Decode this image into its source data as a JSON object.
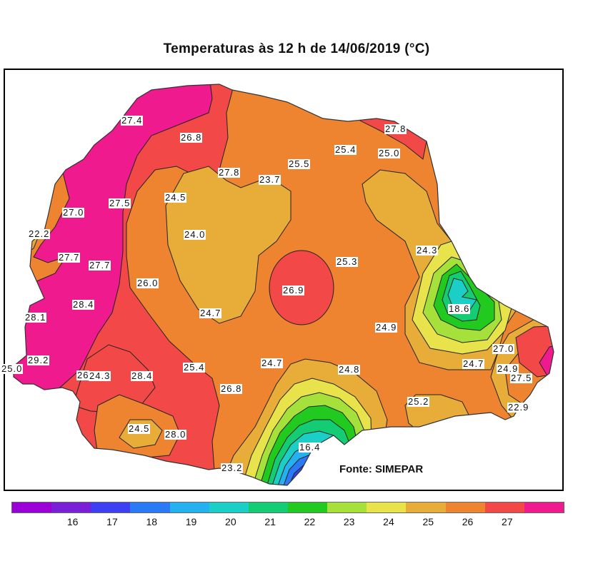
{
  "title": "Temperaturas às 12 h de 14/06/2019  (°C)",
  "source": "Fonte:  SIMEPAR",
  "legend": {
    "bins": [
      {
        "label": "",
        "color": "#9b00d9"
      },
      {
        "label": "16",
        "color": "#7a1fd8"
      },
      {
        "label": "17",
        "color": "#3d3ff2"
      },
      {
        "label": "18",
        "color": "#2a7af5"
      },
      {
        "label": "19",
        "color": "#25b0f0"
      },
      {
        "label": "20",
        "color": "#1ccfc6"
      },
      {
        "label": "21",
        "color": "#14cc74"
      },
      {
        "label": "22",
        "color": "#22c91e"
      },
      {
        "label": "23",
        "color": "#a6e03a"
      },
      {
        "label": "24",
        "color": "#e8e34a"
      },
      {
        "label": "25",
        "color": "#e8ad38"
      },
      {
        "label": "26",
        "color": "#ef8430"
      },
      {
        "label": "27",
        "color": "#f24848"
      },
      {
        "label": "",
        "color": "#ee1a8e"
      }
    ]
  },
  "stations": [
    {
      "id": "s1",
      "value": "27.4"
    },
    {
      "id": "s2",
      "value": "26.8"
    },
    {
      "id": "s3",
      "value": "27.8"
    },
    {
      "id": "s4",
      "value": "23.7"
    },
    {
      "id": "s5",
      "value": "25.5"
    },
    {
      "id": "s6",
      "value": "25.4"
    },
    {
      "id": "s7",
      "value": "25.0"
    },
    {
      "id": "s8",
      "value": "27.8"
    },
    {
      "id": "s9",
      "value": "27.0"
    },
    {
      "id": "s10",
      "value": "27.5"
    },
    {
      "id": "s11",
      "value": "24.5"
    },
    {
      "id": "s12",
      "value": "22.2"
    },
    {
      "id": "s13",
      "value": "24.0"
    },
    {
      "id": "s14",
      "value": "27.7"
    },
    {
      "id": "s15",
      "value": "27.7"
    },
    {
      "id": "s16",
      "value": "26.0"
    },
    {
      "id": "s17",
      "value": "26.9"
    },
    {
      "id": "s18",
      "value": "25.3"
    },
    {
      "id": "s19",
      "value": "24.3"
    },
    {
      "id": "s20",
      "value": "28.4"
    },
    {
      "id": "s21",
      "value": "28.1"
    },
    {
      "id": "s22",
      "value": "24.7"
    },
    {
      "id": "s23",
      "value": "18.6"
    },
    {
      "id": "s24",
      "value": "24.9"
    },
    {
      "id": "s25",
      "value": "29.2"
    },
    {
      "id": "s26",
      "value": "25.0"
    },
    {
      "id": "s27",
      "value": "26"
    },
    {
      "id": "s28",
      "value": "24.3"
    },
    {
      "id": "s29",
      "value": "28.4"
    },
    {
      "id": "s30",
      "value": "25.4"
    },
    {
      "id": "s31",
      "value": "24.7"
    },
    {
      "id": "s32",
      "value": "24.8"
    },
    {
      "id": "s33",
      "value": "26.8"
    },
    {
      "id": "s34",
      "value": "27.0"
    },
    {
      "id": "s35",
      "value": "24.7"
    },
    {
      "id": "s36",
      "value": "24.9"
    },
    {
      "id": "s37",
      "value": "27.5"
    },
    {
      "id": "s38",
      "value": "25.2"
    },
    {
      "id": "s39",
      "value": "22.9"
    },
    {
      "id": "s40",
      "value": "24.5"
    },
    {
      "id": "s41",
      "value": "28.0"
    },
    {
      "id": "s42",
      "value": "16.4"
    },
    {
      "id": "s43",
      "value": "23.2"
    }
  ]
}
